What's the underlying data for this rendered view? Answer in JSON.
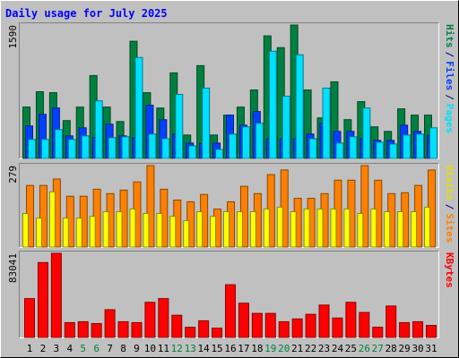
{
  "title": "Daily usage for July 2025",
  "legend_separator": "/",
  "chart_data": [
    {
      "type": "bar",
      "ylim": [
        0,
        1590
      ],
      "yticks": [
        1590
      ],
      "series": [
        {
          "name": "Hits",
          "color": "#008040",
          "values": [
            612,
            795,
            784,
            451,
            612,
            988,
            612,
            440,
            1397,
            784,
            601,
            1020,
            279,
            1106,
            279,
            516,
            612,
            816,
            1461,
            1321,
            1590,
            816,
            483,
            913,
            462,
            677,
            376,
            322,
            591,
            516,
            516
          ]
        },
        {
          "name": "Files",
          "color": "#0040ff",
          "values": [
            387,
            526,
            601,
            269,
            365,
            250,
            408,
            269,
            247,
            634,
            462,
            290,
            183,
            180,
            183,
            516,
            397,
            559,
            236,
            236,
            236,
            290,
            419,
            322,
            322,
            236,
            215,
            215,
            397,
            322,
            269
          ]
        },
        {
          "name": "Pages",
          "color": "#00e0ff",
          "values": [
            226,
            226,
            344,
            226,
            269,
            687,
            247,
            258,
            1203,
            290,
            236,
            763,
            150,
            838,
            107,
            290,
            376,
            419,
            1278,
            741,
            1235,
            236,
            838,
            183,
            258,
            601,
            193,
            172,
            279,
            290,
            365
          ]
        }
      ]
    },
    {
      "type": "bar",
      "ylim": [
        0,
        279
      ],
      "yticks": [
        279
      ],
      "series": [
        {
          "name": "Visits",
          "color": "#ffff00",
          "values": [
            115,
            99,
            189,
            99,
            99,
            105,
            121,
            121,
            130,
            115,
            115,
            105,
            90,
            121,
            105,
            121,
            121,
            121,
            130,
            136,
            121,
            130,
            130,
            130,
            130,
            115,
            130,
            121,
            121,
            121,
            136
          ]
        },
        {
          "name": "Sites",
          "color": "#ff8000",
          "values": [
            211,
            211,
            233,
            174,
            174,
            198,
            183,
            195,
            223,
            279,
            198,
            161,
            155,
            180,
            130,
            155,
            208,
            183,
            248,
            264,
            167,
            167,
            183,
            229,
            229,
            279,
            229,
            183,
            186,
            211,
            264
          ]
        }
      ]
    },
    {
      "type": "bar",
      "ylim": [
        0,
        83041
      ],
      "yticks": [
        83041
      ],
      "categories": [
        "1",
        "2",
        "3",
        "4",
        "5",
        "6",
        "7",
        "8",
        "9",
        "10",
        "11",
        "12",
        "13",
        "14",
        "15",
        "16",
        "17",
        "18",
        "19",
        "20",
        "21",
        "22",
        "23",
        "24",
        "25",
        "26",
        "27",
        "28",
        "29",
        "30",
        "31"
      ],
      "category_colors": [
        "#000000",
        "#000000",
        "#000000",
        "#000000",
        "#008040",
        "#008040",
        "#000000",
        "#000000",
        "#000000",
        "#000000",
        "#000000",
        "#008040",
        "#008040",
        "#000000",
        "#000000",
        "#000000",
        "#000000",
        "#000000",
        "#008040",
        "#008040",
        "#000000",
        "#000000",
        "#000000",
        "#000000",
        "#000000",
        "#008040",
        "#008040",
        "#000000",
        "#000000",
        "#000000",
        "#000000"
      ],
      "series": [
        {
          "name": "KBytes",
          "color": "#ff0000",
          "values": [
            38325,
            73913,
            83041,
            14600,
            15513,
            13688,
            27375,
            15513,
            14600,
            34675,
            38325,
            21900,
            10038,
            16425,
            9125,
            52013,
            33763,
            23725,
            23725,
            15513,
            18250,
            22813,
            31938,
            19163,
            34675,
            24638,
            10038,
            31025,
            14600,
            15513,
            11863
          ]
        }
      ]
    }
  ]
}
